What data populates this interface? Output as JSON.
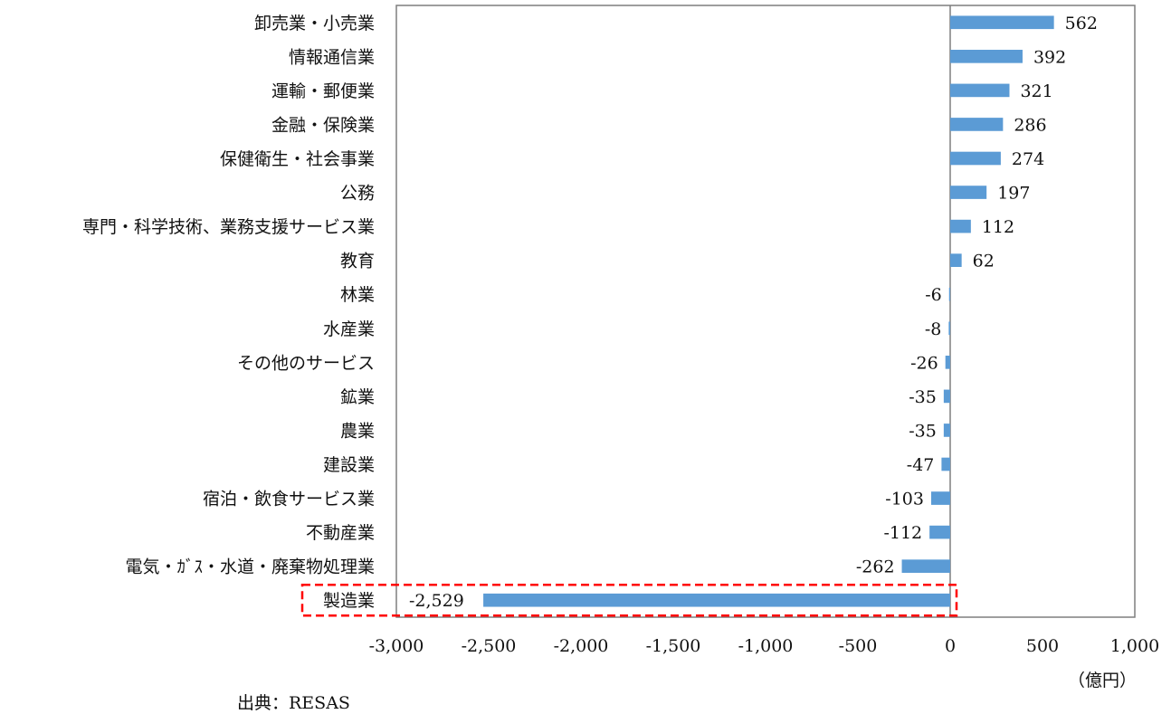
{
  "chart_data": {
    "type": "bar",
    "orientation": "horizontal",
    "categories": [
      "卸売業・小売業",
      "情報通信業",
      "運輸・郵便業",
      "金融・保険業",
      "保健衛生・社会事業",
      "公務",
      "専門・科学技術、業務支援サービス業",
      "教育",
      "林業",
      "水産業",
      "その他のサービス",
      "鉱業",
      "農業",
      "建設業",
      "宿泊・飲食サービス業",
      "不動産業",
      "電気・ｶﾞｽ・水道・廃棄物処理業",
      "製造業"
    ],
    "values": [
      562,
      392,
      321,
      286,
      274,
      197,
      112,
      62,
      -6,
      -8,
      -26,
      -35,
      -35,
      -47,
      -103,
      -112,
      -262,
      -2529
    ],
    "value_labels": [
      "562",
      "392",
      "321",
      "286",
      "274",
      "197",
      "112",
      "62",
      "-6",
      "-8",
      "-26",
      "-35",
      "-35",
      "-47",
      "-103",
      "-112",
      "-262",
      "-2,529"
    ],
    "xlim": [
      -3000,
      1000
    ],
    "xticks": [
      -3000,
      -2500,
      -2000,
      -1500,
      -1000,
      -500,
      0,
      500,
      1000
    ],
    "xtick_labels": [
      "-3,000",
      "-2,500",
      "-2,000",
      "-1,500",
      "-1,000",
      "-500",
      "0",
      "500",
      "1,000"
    ],
    "unit_label": "（億円）",
    "source": "出典：RESAS",
    "highlighted_category": "製造業",
    "bar_color": "#5b9bd5",
    "highlight_color": "#ff0000",
    "grid": false,
    "legend": "none"
  }
}
